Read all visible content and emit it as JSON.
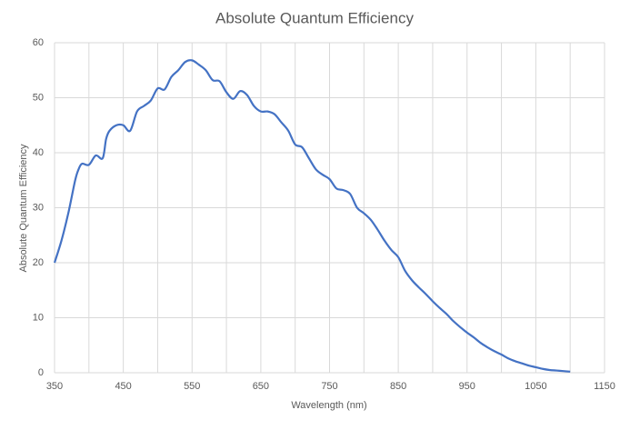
{
  "chart_data": {
    "type": "line",
    "title": "Absolute Quantum Efficiency",
    "x_label": "Wavelength (nm)",
    "y_label": "Absolute Quantum Efficiency",
    "x": [
      350,
      360,
      370,
      380,
      385,
      390,
      400,
      410,
      420,
      425,
      430,
      440,
      450,
      460,
      470,
      480,
      490,
      500,
      510,
      520,
      530,
      540,
      550,
      560,
      570,
      580,
      590,
      600,
      610,
      620,
      630,
      640,
      650,
      660,
      670,
      680,
      690,
      700,
      710,
      720,
      730,
      740,
      750,
      760,
      770,
      780,
      790,
      800,
      810,
      820,
      830,
      840,
      850,
      860,
      870,
      880,
      890,
      900,
      910,
      920,
      930,
      940,
      950,
      960,
      970,
      980,
      990,
      1000,
      1010,
      1020,
      1030,
      1040,
      1050,
      1060,
      1070,
      1080,
      1090,
      1100
    ],
    "series": [
      {
        "name": "Absolute Quantum Efficiency",
        "color": "#4472c4",
        "values": [
          20,
          24,
          29,
          35,
          37,
          38,
          37.8,
          39.5,
          39,
          42.5,
          44,
          45,
          45,
          44,
          47.5,
          48.5,
          49.5,
          51.7,
          51.5,
          53.8,
          55,
          56.5,
          56.8,
          56,
          55,
          53.2,
          53,
          51,
          49.8,
          51.2,
          50.5,
          48.5,
          47.5,
          47.5,
          47,
          45.5,
          44,
          41.5,
          41,
          39,
          37,
          36,
          35.2,
          33.5,
          33.2,
          32.5,
          30,
          29,
          27.8,
          26,
          24,
          22.3,
          21,
          18.5,
          16.8,
          15.5,
          14.3,
          13,
          11.8,
          10.7,
          9.4,
          8.3,
          7.3,
          6.4,
          5.4,
          4.6,
          3.9,
          3.3,
          2.6,
          2.1,
          1.7,
          1.3,
          1,
          0.7,
          0.5,
          0.4,
          0.3,
          0.2
        ]
      }
    ],
    "xlim": [
      350,
      1150
    ],
    "xticks": [
      350,
      450,
      550,
      650,
      750,
      850,
      950,
      1050,
      1150
    ],
    "xgrid": [
      350,
      400,
      450,
      500,
      550,
      600,
      650,
      700,
      750,
      800,
      850,
      900,
      950,
      1000,
      1050,
      1100,
      1150
    ],
    "ylim": [
      0,
      60
    ],
    "yticks": [
      0,
      10,
      20,
      30,
      40,
      50,
      60
    ],
    "grid": true
  }
}
